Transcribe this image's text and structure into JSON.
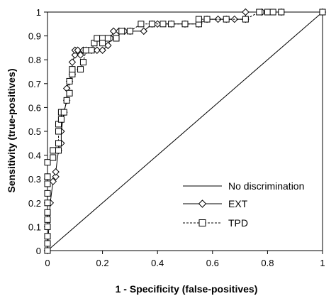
{
  "chart_data": {
    "type": "line",
    "title": "",
    "xlabel": "1 - Specificity (false-positives)",
    "ylabel": "Sensitivity (true-positives)",
    "xlim": [
      0,
      1
    ],
    "ylim": [
      0,
      1
    ],
    "xticks": [
      "0",
      "0.2",
      "0.4",
      "0.6",
      "0.8",
      "1"
    ],
    "yticks": [
      "0",
      "0.1",
      "0.2",
      "0.3",
      "0.4",
      "0.5",
      "0.6",
      "0.7",
      "0.8",
      "0.9",
      "1"
    ],
    "grid": false,
    "legend_position": "bottom-right",
    "series": [
      {
        "name": "No discrimination",
        "style": "solid",
        "marker": "none",
        "x": [
          0,
          1
        ],
        "y": [
          0,
          1
        ]
      },
      {
        "name": "EXT",
        "style": "solid",
        "marker": "diamond",
        "x": [
          0,
          0.01,
          0.02,
          0.03,
          0.03,
          0.04,
          0.05,
          0.05,
          0.06,
          0.07,
          0.07,
          0.08,
          0.09,
          0.09,
          0.1,
          0.1,
          0.11,
          0.12,
          0.13,
          0.14,
          0.16,
          0.18,
          0.2,
          0.22,
          0.23,
          0.24,
          0.26,
          0.28,
          0.3,
          0.35,
          0.38,
          0.4,
          0.45,
          0.5,
          0.55,
          0.58,
          0.62,
          0.65,
          0.68,
          0.72,
          0.72,
          0.78,
          0.85,
          1.0
        ],
        "y": [
          0.0,
          0.2,
          0.29,
          0.31,
          0.33,
          0.42,
          0.45,
          0.5,
          0.58,
          0.63,
          0.68,
          0.71,
          0.74,
          0.79,
          0.82,
          0.84,
          0.84,
          0.82,
          0.84,
          0.84,
          0.84,
          0.84,
          0.84,
          0.86,
          0.89,
          0.92,
          0.92,
          0.92,
          0.92,
          0.92,
          0.95,
          0.95,
          0.95,
          0.95,
          0.95,
          0.97,
          0.97,
          0.97,
          0.97,
          0.97,
          1.0,
          1.0,
          1.0,
          1.0
        ]
      },
      {
        "name": "TPD",
        "style": "dashed",
        "marker": "square",
        "x": [
          0,
          0,
          0,
          0,
          0,
          0,
          0,
          0,
          0,
          0,
          0,
          0.02,
          0.02,
          0.04,
          0.04,
          0.04,
          0.04,
          0.05,
          0.05,
          0.06,
          0.07,
          0.08,
          0.08,
          0.09,
          0.09,
          0.12,
          0.13,
          0.14,
          0.16,
          0.17,
          0.18,
          0.2,
          0.2,
          0.22,
          0.25,
          0.27,
          0.3,
          0.34,
          0.38,
          0.42,
          0.45,
          0.5,
          0.55,
          0.55,
          0.58,
          0.65,
          0.72,
          0.77,
          0.8,
          0.82,
          0.85,
          1.0
        ],
        "y": [
          0.0,
          0.03,
          0.06,
          0.1,
          0.13,
          0.16,
          0.2,
          0.24,
          0.28,
          0.31,
          0.37,
          0.39,
          0.42,
          0.42,
          0.45,
          0.5,
          0.53,
          0.55,
          0.58,
          0.58,
          0.63,
          0.66,
          0.71,
          0.74,
          0.76,
          0.76,
          0.79,
          0.84,
          0.84,
          0.87,
          0.89,
          0.89,
          0.87,
          0.89,
          0.89,
          0.92,
          0.92,
          0.95,
          0.95,
          0.95,
          0.95,
          0.95,
          0.95,
          0.97,
          0.97,
          0.97,
          0.97,
          1.0,
          1.0,
          1.0,
          1.0,
          1.0
        ]
      }
    ]
  }
}
